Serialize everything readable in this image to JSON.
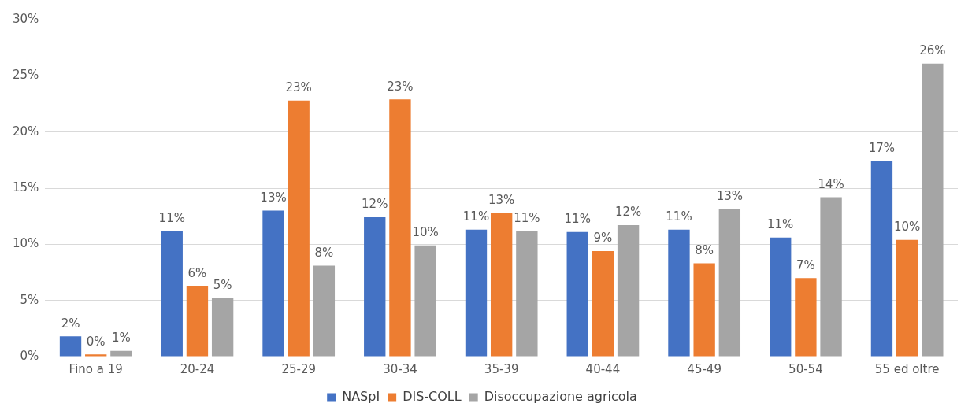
{
  "chart_data": {
    "type": "bar",
    "categories": [
      "Fino a 19",
      "20-24",
      "25-29",
      "30-34",
      "35-39",
      "40-44",
      "45-49",
      "50-54",
      "55 ed oltre"
    ],
    "series": [
      {
        "name": "NASpI",
        "color": "#4472c4",
        "values": [
          1.8,
          11.2,
          13.0,
          12.4,
          11.3,
          11.1,
          11.3,
          10.6,
          17.4
        ],
        "value_labels": [
          "2%",
          "11%",
          "13%",
          "12%",
          "11%",
          "11%",
          "11%",
          "11%",
          "17%"
        ]
      },
      {
        "name": "DIS-COLL",
        "color": "#ed7d31",
        "values": [
          0.2,
          6.3,
          22.8,
          22.9,
          12.8,
          9.4,
          8.3,
          7.0,
          10.4
        ],
        "value_labels": [
          "0%",
          "6%",
          "23%",
          "23%",
          "13%",
          "9%",
          "8%",
          "7%",
          "10%"
        ]
      },
      {
        "name": "Disoccupazione agricola",
        "color": "#a5a5a5",
        "values": [
          0.5,
          5.2,
          8.1,
          9.9,
          11.2,
          11.7,
          13.1,
          14.2,
          26.1
        ],
        "value_labels": [
          "1%",
          "5%",
          "8%",
          "10%",
          "11%",
          "12%",
          "13%",
          "14%",
          "26%"
        ]
      }
    ],
    "ylim": [
      0,
      30
    ],
    "yticks": [
      {
        "value": 0,
        "label": "0%"
      },
      {
        "value": 5,
        "label": "5%"
      },
      {
        "value": 10,
        "label": "10%"
      },
      {
        "value": 15,
        "label": "15%"
      },
      {
        "value": 20,
        "label": "20%"
      },
      {
        "value": 25,
        "label": "25%"
      },
      {
        "value": 30,
        "label": "30%"
      }
    ],
    "grid": "y",
    "legend": "bottom"
  }
}
